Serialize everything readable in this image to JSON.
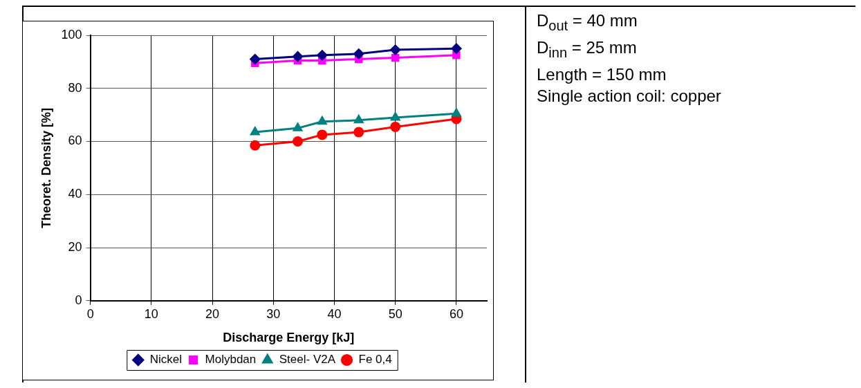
{
  "chart_data": {
    "type": "line",
    "xlabel": "Discharge Energy [kJ]",
    "ylabel": "Theoret. Density [%]",
    "x": [
      27,
      34,
      38,
      44,
      50,
      60
    ],
    "series": [
      {
        "name": "Nickel",
        "color": "#000080",
        "marker": "diamond",
        "values": [
          91,
          92,
          92.5,
          93,
          94.5,
          95
        ]
      },
      {
        "name": "Molybdan",
        "color": "#ff00ff",
        "marker": "square",
        "values": [
          89.5,
          90.5,
          90.5,
          91,
          91.5,
          92.5
        ]
      },
      {
        "name": "Steel- V2A",
        "color": "#008080",
        "marker": "triangle",
        "values": [
          63.5,
          65,
          67.5,
          68,
          69,
          70.5
        ]
      },
      {
        "name": "Fe 0,4",
        "color": "#ff0000",
        "marker": "circle",
        "values": [
          58.5,
          60,
          62.5,
          63.5,
          65.5,
          68.5
        ]
      }
    ],
    "xlim": [
      0,
      65
    ],
    "xticks": [
      0,
      10,
      20,
      30,
      40,
      50,
      60
    ],
    "ylim": [
      0,
      100
    ],
    "yticks": [
      0,
      20,
      40,
      60,
      80,
      100
    ],
    "grid": true,
    "legend": "bottom",
    "line_style": "solid",
    "annotations": [
      "D$_{out}$ = 40 mm",
      "D$_{inn}$ = 25 mm",
      "Length = 150 mm",
      "Single action coil: copper"
    ]
  }
}
